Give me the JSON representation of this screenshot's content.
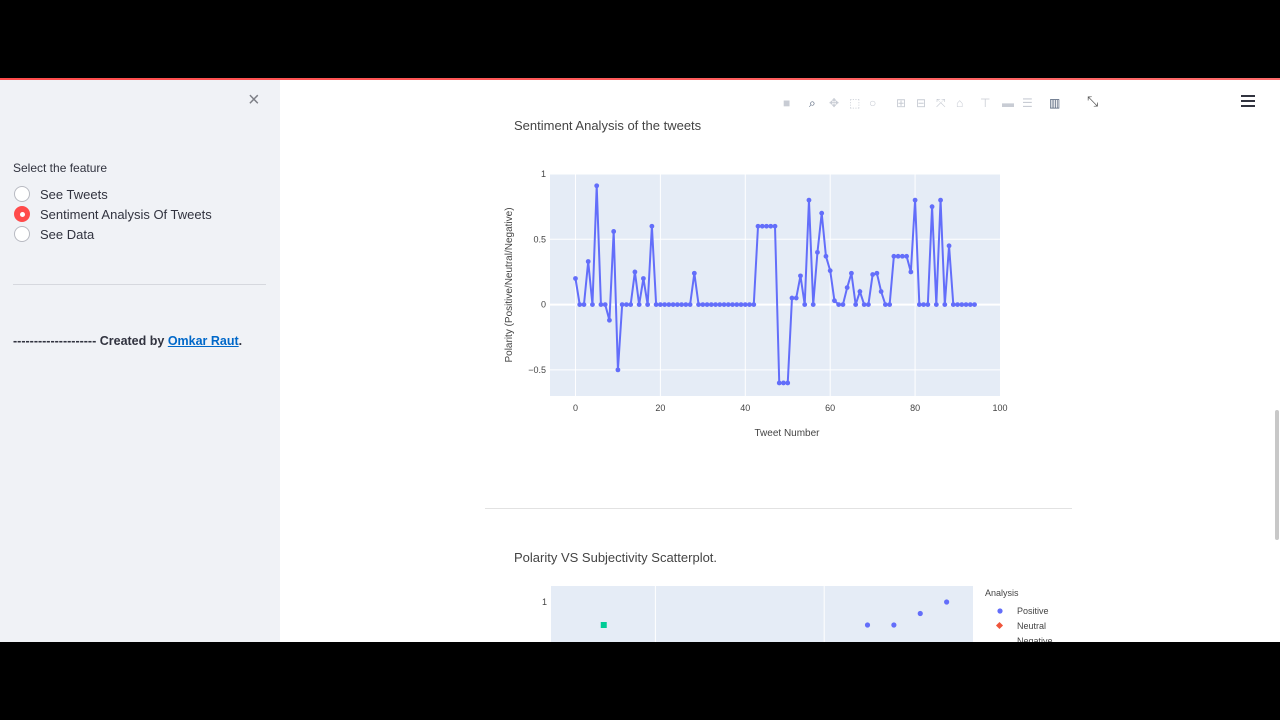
{
  "sidebar": {
    "close_label": "×",
    "radio_label": "Select the feature",
    "options": [
      {
        "label": "See Tweets",
        "selected": false
      },
      {
        "label": "Sentiment Analysis Of Tweets",
        "selected": true
      },
      {
        "label": "See Data",
        "selected": false
      }
    ],
    "credit_prefix": "-------------------- Created by ",
    "credit_link": "Omkar Raut",
    "credit_suffix": "."
  },
  "colors": {
    "accent": "#ff4b4b",
    "series": "#636efa",
    "neutral": "#ef553b",
    "negative": "#00cc96",
    "plot_bg": "#e5ecf6"
  },
  "modebar_icons": [
    "camera-icon",
    "zoom-icon",
    "pan-icon",
    "box-select-icon",
    "lasso-icon",
    "zoom-in-icon",
    "zoom-out-icon",
    "autoscale-icon",
    "reset-axes-icon",
    "spike-lines-icon",
    "hover-closest-icon",
    "hover-compare-icon",
    "plotly-logo-icon"
  ],
  "chart_data": [
    {
      "type": "line",
      "title": "Sentiment Analysis of the tweets",
      "xlabel": "Tweet Number",
      "ylabel": "Polarity (Positive/Neutral/Negative)",
      "xlim": [
        -6,
        100
      ],
      "ylim": [
        -0.7,
        1
      ],
      "xticks": [
        0,
        20,
        40,
        60,
        80,
        100
      ],
      "yticks": [
        -0.5,
        0,
        0.5,
        1
      ],
      "ytick_labels": [
        "−0.5",
        "0",
        "0.5",
        "1"
      ],
      "grid": true,
      "series": [
        {
          "values": [
            0.2,
            0,
            0,
            0.33,
            0,
            0.91,
            0,
            0,
            -0.12,
            0.56,
            -0.5,
            0,
            0,
            0,
            0.25,
            0,
            0.2,
            0,
            0.6,
            0,
            0,
            0,
            0,
            0,
            0,
            0,
            0,
            0,
            0.24,
            0,
            0,
            0,
            0,
            0,
            0,
            0,
            0,
            0,
            0,
            0,
            0,
            0,
            0,
            0.6,
            0.6,
            0.6,
            0.6,
            0.6,
            -0.6,
            -0.6,
            -0.6,
            0.05,
            0.05,
            0.22,
            0,
            0.8,
            0,
            0.4,
            0.7,
            0.37,
            0.26,
            0.03,
            0,
            0,
            0.13,
            0.24,
            0,
            0.1,
            0,
            0,
            0.23,
            0.24,
            0.1,
            0,
            0,
            0.37,
            0.37,
            0.37,
            0.37,
            0.25,
            0.8,
            0,
            0,
            0,
            0.75,
            0,
            0.8,
            0,
            0.45,
            0,
            0,
            0,
            0,
            0,
            0
          ]
        }
      ]
    },
    {
      "type": "scatter",
      "title": "Polarity VS Subjectivity Scatterplot.",
      "legend_title": "Analysis",
      "legend_position": "right",
      "yticks_visible": [
        "1"
      ],
      "series": [
        {
          "name": "Positive",
          "points": [
            [
              0.4,
              0.8
            ],
            [
              0.5,
              0.8
            ],
            [
              0.6,
              0.9
            ],
            [
              0.7,
              1.0
            ]
          ]
        },
        {
          "name": "Neutral",
          "points": []
        },
        {
          "name": "Negative",
          "points": [
            [
              -0.6,
              0.8
            ]
          ]
        }
      ]
    }
  ]
}
